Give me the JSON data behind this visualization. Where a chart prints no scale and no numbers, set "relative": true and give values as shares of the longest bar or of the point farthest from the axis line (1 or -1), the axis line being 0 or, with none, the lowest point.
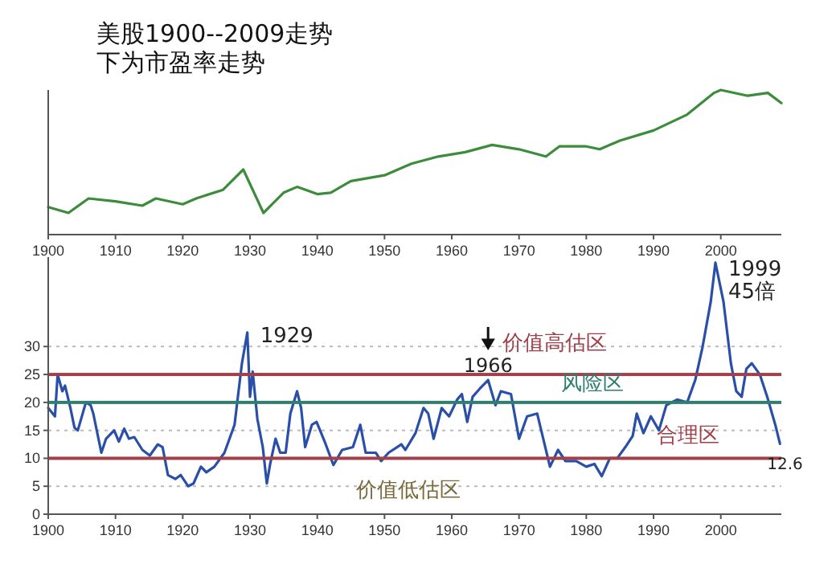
{
  "chart_data": [
    {
      "type": "line",
      "title": "美股1900--2009走势",
      "subtitle": "下为市盈率走势",
      "relative": true,
      "xlim": [
        1900,
        2009
      ],
      "xticks": [
        1900,
        1910,
        1920,
        1930,
        1940,
        1950,
        1960,
        1970,
        1980,
        1990,
        2000
      ],
      "grid": false,
      "series": [
        {
          "color": "#3c8c3c",
          "x": [
            1900,
            1903,
            1906,
            1910,
            1914,
            1916,
            1920,
            1922,
            1926,
            1929,
            1932,
            1935,
            1937,
            1940,
            1942,
            1945,
            1950,
            1954,
            1958,
            1962,
            1966,
            1970,
            1974,
            1976,
            1980,
            1982,
            1985,
            1990,
            1995,
            1999,
            2000,
            2004,
            2007,
            2009
          ],
          "values": [
            0.19,
            0.15,
            0.25,
            0.23,
            0.2,
            0.25,
            0.21,
            0.25,
            0.31,
            0.45,
            0.15,
            0.29,
            0.33,
            0.28,
            0.29,
            0.37,
            0.41,
            0.49,
            0.54,
            0.57,
            0.62,
            0.59,
            0.54,
            0.61,
            0.61,
            0.59,
            0.65,
            0.72,
            0.83,
            0.98,
            1,
            0.96,
            0.98,
            0.91
          ]
        }
      ]
    },
    {
      "type": "line",
      "xlim": [
        1900,
        2009
      ],
      "ylim": [
        0,
        46
      ],
      "xticks": [
        1900,
        1910,
        1920,
        1930,
        1940,
        1950,
        1960,
        1970,
        1980,
        1990,
        2000
      ],
      "yticks": [
        0,
        5,
        10,
        15,
        20,
        25,
        30
      ],
      "grid": "y",
      "series": [
        {
          "color": "#2a4fa8",
          "x": [
            1900,
            1901,
            1901.4,
            1902.1,
            1902.5,
            1903.3,
            1903.9,
            1904.4,
            1905.6,
            1906.3,
            1906.7,
            1907.9,
            1908.6,
            1909.8,
            1910.5,
            1911.3,
            1912,
            1912.8,
            1914,
            1915.1,
            1916.3,
            1917,
            1917.8,
            1918.9,
            1919.7,
            1920.8,
            1921.6,
            1922.7,
            1923.5,
            1924.7,
            1926.2,
            1927.7,
            1928.8,
            1929.6,
            1930,
            1930.4,
            1931.1,
            1931.9,
            1932.5,
            1933,
            1933.8,
            1934.5,
            1935.3,
            1936,
            1937,
            1937.6,
            1938.2,
            1939.2,
            1939.9,
            1941.1,
            1942.4,
            1943.7,
            1945.3,
            1946.4,
            1947.2,
            1948.7,
            1949.5,
            1950.6,
            1952.5,
            1953.1,
            1954.6,
            1955.8,
            1956.5,
            1957.3,
            1958.5,
            1959.6,
            1960.8,
            1961.5,
            1962.3,
            1963.1,
            1964.2,
            1965.4,
            1966.5,
            1967.3,
            1968.8,
            1970,
            1971.2,
            1972.7,
            1973.5,
            1974.6,
            1975.8,
            1976.9,
            1978.5,
            1980,
            1981.2,
            1982.3,
            1983.5,
            1984.6,
            1985.8,
            1986.9,
            1987.5,
            1988.5,
            1989.6,
            1990.8,
            1991.9,
            1993.5,
            1995,
            1996.2,
            1997.3,
            1998.5,
            1999.2,
            2000.4,
            2001.5,
            2002.3,
            2003.1,
            2003.8,
            2004.6,
            2005.8,
            2006.9,
            2008.1,
            2008.8
          ],
          "values": [
            19,
            17.5,
            25,
            22,
            23,
            19,
            15.5,
            15,
            20,
            19.5,
            18,
            11,
            13.5,
            15,
            13,
            15.3,
            13.5,
            13.8,
            11.5,
            10.5,
            12.5,
            12,
            7,
            6.3,
            7,
            5,
            5.5,
            8.5,
            7.5,
            8.5,
            11,
            16,
            27,
            32.5,
            21,
            25.5,
            17,
            12,
            5.5,
            9,
            13.5,
            11,
            11,
            18,
            22,
            19,
            12,
            16,
            16.5,
            13,
            8.8,
            11.5,
            12,
            16,
            11,
            11,
            9.5,
            11,
            12.5,
            11.5,
            14.5,
            19,
            18,
            13.5,
            19,
            17.5,
            20.5,
            21.5,
            16.5,
            21,
            22.5,
            24,
            19.5,
            22,
            21.5,
            13.5,
            17.5,
            18,
            14,
            8.5,
            11.5,
            9.5,
            9.5,
            8.5,
            9,
            6.8,
            10,
            10,
            12,
            14,
            18,
            14.5,
            17.5,
            15,
            19.5,
            20.5,
            20,
            24,
            30,
            38,
            45,
            38,
            27,
            22,
            21,
            26,
            27,
            25,
            21,
            16,
            12.6
          ]
        }
      ],
      "ref_lines": [
        {
          "axis": "y",
          "value": 25,
          "color": "#a0404a"
        },
        {
          "axis": "y",
          "value": 20,
          "color": "#2f7f6f"
        },
        {
          "axis": "y",
          "value": 10,
          "color": "#a0404a"
        }
      ],
      "annotations": [
        "价值高估区",
        "风险区",
        "合理区",
        "价值低估区",
        {
          "text": "1929",
          "x": 1929.6,
          "y": 32.5
        },
        {
          "text": "1966",
          "x": 1965.4,
          "y": 24
        },
        {
          "text": "1999\n45倍",
          "x": 1999.2,
          "y": 45
        },
        {
          "text": "12.6",
          "x": 2008.8,
          "y": 12.6
        }
      ]
    }
  ]
}
